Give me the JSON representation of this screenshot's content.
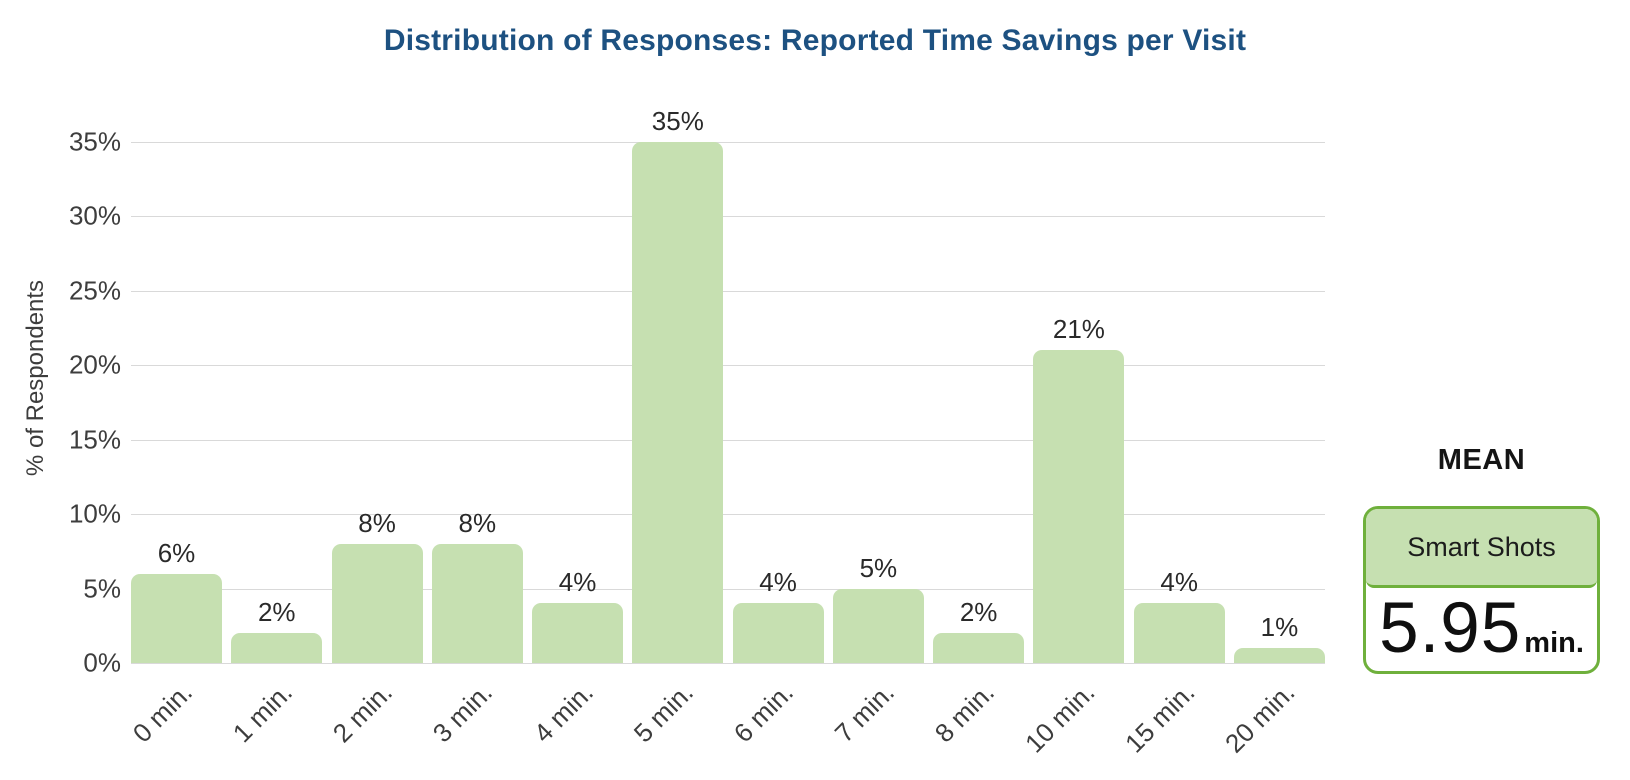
{
  "chart_data": {
    "type": "bar",
    "title": "Distribution of Responses: Reported Time Savings per Visit",
    "categories": [
      "0 min.",
      "1 min.",
      "2 min.",
      "3 min.",
      "4 min.",
      "5 min.",
      "6 min.",
      "7 min.",
      "8 min.",
      "10 min.",
      "15 min.",
      "20 min."
    ],
    "values": [
      6,
      2,
      8,
      8,
      4,
      35,
      4,
      5,
      2,
      21,
      4,
      1
    ],
    "value_labels": [
      "6%",
      "2%",
      "8%",
      "8%",
      "4%",
      "35%",
      "4%",
      "5%",
      "2%",
      "21%",
      "4%",
      "1%"
    ],
    "xlabel": "",
    "ylabel": "% of Respondents",
    "ylim": [
      0,
      35
    ],
    "ytick_step": 5,
    "ytick_labels": [
      "0%",
      "5%",
      "10%",
      "15%",
      "20%",
      "25%",
      "30%",
      "35%"
    ],
    "grid": "horizontal",
    "legend": "none",
    "bar_corner_radius": 9
  },
  "mean_panel": {
    "heading": "MEAN",
    "card_title": "Smart Shots",
    "value": "5.95",
    "unit": "min."
  },
  "colors": {
    "title_blue": "#1d5181",
    "bar_fill": "#c6e0b1",
    "accent_green": "#6fb03c",
    "gridline": "#d9d9d9",
    "axis_text": "#3d3d3d",
    "value_text": "#2a2a2a"
  }
}
